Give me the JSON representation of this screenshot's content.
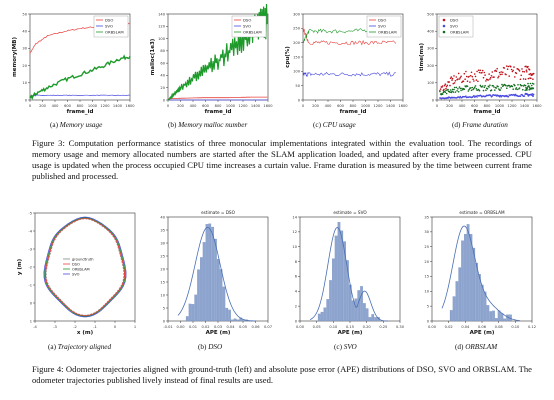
{
  "figure3": {
    "panels": [
      {
        "id": "a",
        "label": "(a)",
        "caption": "Memory usage",
        "ylabel": "memory(MB)",
        "xlabel": "frame_id",
        "yticks": [
          "0",
          "10",
          "20",
          "30",
          "40",
          "50"
        ],
        "xticks": [
          "0",
          "200",
          "400",
          "600",
          "800",
          "1000",
          "1200",
          "1400",
          "1600"
        ],
        "legend": [
          "DSO",
          "SVO",
          "ORBSLAM"
        ]
      },
      {
        "id": "b",
        "label": "(b)",
        "caption": "Memory malloc number",
        "ylabel": "malloc(1e3)",
        "xlabel": "frame_id",
        "yticks": [
          "0",
          "20",
          "40",
          "60",
          "80",
          "100",
          "120",
          "140"
        ],
        "xticks": [
          "0",
          "200",
          "400",
          "600",
          "800",
          "1000",
          "1200",
          "1400",
          "1600"
        ],
        "legend": [
          "DSO",
          "SVO",
          "ORBSLAM"
        ]
      },
      {
        "id": "c",
        "label": "(c)",
        "caption": "CPU usage",
        "ylabel": "cpu(%)",
        "xlabel": "frame_id",
        "yticks": [
          "0",
          "50",
          "100",
          "150",
          "200",
          "250",
          "300"
        ],
        "xticks": [
          "0",
          "200",
          "400",
          "600",
          "800",
          "1000",
          "1200",
          "1400",
          "1600"
        ],
        "legend": [
          "DSO",
          "SVO",
          "ORBSLAM"
        ]
      },
      {
        "id": "d",
        "label": "(d)",
        "caption": "Frame duration",
        "ylabel": "time(ms)",
        "xlabel": "frame_id",
        "yticks": [
          "0",
          "100",
          "200",
          "300",
          "400",
          "500"
        ],
        "xticks": [
          "0",
          "200",
          "400",
          "600",
          "800",
          "1000",
          "1200",
          "1400",
          "1600"
        ],
        "legend": [
          "DSO",
          "SVO",
          "ORBSLAM"
        ]
      }
    ],
    "caption_text": "Figure 3: Computation performance statistics of three monocular implementations integrated within the evaluation tool. The recordings of memory usage and memory allocated numbers are started after the SLAM application loaded, and updated after every frame processed. CPU usage is updated when the process occupied CPU time increases a curtain value. Frame duration is measured by the time between current frame published and processed."
  },
  "figure4": {
    "panels": [
      {
        "id": "a",
        "label": "(a)",
        "caption": "Trajectory aligned",
        "xlabel": "x (m)",
        "ylabel": "y (m)",
        "legend": [
          "groundtruth",
          "DSO",
          "ORBSLAM",
          "SVO"
        ],
        "xticks": [
          "-4",
          "-3",
          "-2",
          "-1",
          "0",
          "1"
        ],
        "yticks": [
          "1",
          "0",
          "-1",
          "-2",
          "-3",
          "-4",
          "-5"
        ]
      },
      {
        "id": "b",
        "label": "(b)",
        "caption": "DSO",
        "title": "estimate = DSO",
        "xlabel": "APE (m)",
        "xticks": [
          "-0.01",
          "0.00",
          "0.01",
          "0.02",
          "0.03",
          "0.04",
          "0.05",
          "0.06",
          "0.07"
        ],
        "yticks": [
          "0",
          "5",
          "10",
          "15",
          "20",
          "25",
          "30",
          "35",
          "40"
        ]
      },
      {
        "id": "c",
        "label": "(c)",
        "caption": "SVO",
        "title": "estimate = SVO",
        "xlabel": "APE (m)",
        "xticks": [
          "0.00",
          "0.05",
          "0.10",
          "0.15",
          "0.20",
          "0.25",
          "0.30"
        ],
        "yticks": [
          "0",
          "2",
          "4",
          "6",
          "8",
          "10",
          "12",
          "14"
        ]
      },
      {
        "id": "d",
        "label": "(d)",
        "caption": "ORBSLAM",
        "title": "estimate = ORBSLAM",
        "xlabel": "APE (m)",
        "xticks": [
          "0.00",
          "0.02",
          "0.04",
          "0.06",
          "0.08",
          "0.10",
          "0.12"
        ],
        "yticks": [
          "0",
          "5",
          "10",
          "15",
          "20",
          "25",
          "30",
          "35"
        ]
      }
    ],
    "caption_text": "Figure 4: Odometer trajectories aligned with ground-truth (left) and absolute pose error (APE) distributions of DSO, SVO and ORBSLAM. The odometer trajectories published lively instead of final results are used."
  },
  "colors": {
    "dso": "#e8413c",
    "svo": "#4a4ae0",
    "orbslam": "#1d9a2a",
    "hist": "#8da4cf",
    "kde": "#4a6fb5",
    "groundtruth": "#888888"
  },
  "chart_data": [
    {
      "type": "line",
      "title": "",
      "xlabel": "frame_id",
      "ylabel": "memory(MB)",
      "xlim": [
        0,
        1700
      ],
      "ylim": [
        0,
        55
      ],
      "x": [
        0,
        100,
        300,
        600,
        900,
        1200,
        1500,
        1700
      ],
      "series": [
        {
          "name": "DSO",
          "values": [
            30,
            36,
            41,
            44,
            46,
            47,
            48,
            49
          ]
        },
        {
          "name": "SVO",
          "values": [
            2,
            3,
            3,
            3,
            3,
            3,
            3,
            3
          ]
        },
        {
          "name": "ORBSLAM",
          "values": [
            1,
            4,
            8,
            13,
            17,
            21,
            26,
            28
          ]
        }
      ]
    },
    {
      "type": "line",
      "title": "",
      "xlabel": "frame_id",
      "ylabel": "malloc(1e3)",
      "xlim": [
        0,
        1700
      ],
      "ylim": [
        0,
        150
      ],
      "x": [
        0,
        200,
        600,
        1000,
        1400,
        1700
      ],
      "series": [
        {
          "name": "DSO",
          "values": [
            2,
            3,
            4,
            4,
            5,
            5
          ]
        },
        {
          "name": "SVO",
          "values": [
            0,
            0,
            0,
            0,
            0,
            0
          ]
        },
        {
          "name": "ORBSLAM",
          "values": [
            0,
            20,
            50,
            80,
            115,
            140
          ]
        }
      ]
    },
    {
      "type": "line",
      "title": "",
      "xlabel": "frame_id",
      "ylabel": "cpu(%)",
      "xlim": [
        0,
        1700
      ],
      "ylim": [
        0,
        300
      ],
      "x": [
        0,
        100,
        400,
        800,
        1200,
        1600
      ],
      "series": [
        {
          "name": "DSO",
          "values": [
            250,
            200,
            200,
            200,
            200,
            200
          ]
        },
        {
          "name": "SVO",
          "values": [
            90,
            90,
            90,
            90,
            90,
            90
          ]
        },
        {
          "name": "ORBSLAM",
          "values": [
            200,
            240,
            240,
            240,
            245,
            245
          ]
        }
      ]
    },
    {
      "type": "scatter",
      "title": "",
      "xlabel": "frame_id",
      "ylabel": "time(ms)",
      "xlim": [
        0,
        1700
      ],
      "ylim": [
        0,
        500
      ],
      "series": [
        {
          "name": "DSO",
          "x": [
            50,
            300,
            600,
            900,
            1200,
            1500,
            1650
          ],
          "values": [
            60,
            120,
            140,
            150,
            160,
            160,
            160
          ]
        },
        {
          "name": "SVO",
          "x": [
            50,
            300,
            600,
            900,
            1200,
            1500,
            1650
          ],
          "values": [
            10,
            15,
            20,
            25,
            25,
            30,
            30
          ]
        },
        {
          "name": "ORBSLAM",
          "x": [
            50,
            300,
            600,
            900,
            1200,
            1500,
            1650
          ],
          "values": [
            40,
            60,
            70,
            70,
            75,
            75,
            80
          ]
        }
      ]
    },
    {
      "type": "bar",
      "title": "estimate = DSO",
      "xlabel": "APE (m)",
      "xlim": [
        -0.01,
        0.07
      ],
      "ylim": [
        0,
        40
      ],
      "categories": [
        "0.005",
        "0.010",
        "0.015",
        "0.020",
        "0.025",
        "0.030",
        "0.035",
        "0.040",
        "0.045"
      ],
      "values": [
        3,
        10,
        22,
        35,
        30,
        22,
        15,
        7,
        3
      ]
    },
    {
      "type": "bar",
      "title": "estimate = SVO",
      "xlabel": "APE (m)",
      "xlim": [
        0,
        0.3
      ],
      "ylim": [
        0,
        14
      ],
      "categories": [
        "0.02",
        "0.05",
        "0.08",
        "0.10",
        "0.13",
        "0.15",
        "0.18",
        "0.21",
        "0.24"
      ],
      "values": [
        1,
        4,
        9,
        13,
        10,
        5,
        4,
        4,
        2
      ]
    },
    {
      "type": "bar",
      "title": "estimate = ORBSLAM",
      "xlabel": "APE (m)",
      "xlim": [
        0,
        0.12
      ],
      "ylim": [
        0,
        35
      ],
      "categories": [
        "0.005",
        "0.010",
        "0.015",
        "0.020",
        "0.025",
        "0.030",
        "0.040",
        "0.050",
        "0.060"
      ],
      "values": [
        8,
        30,
        32,
        28,
        22,
        18,
        12,
        8,
        4
      ]
    }
  ]
}
